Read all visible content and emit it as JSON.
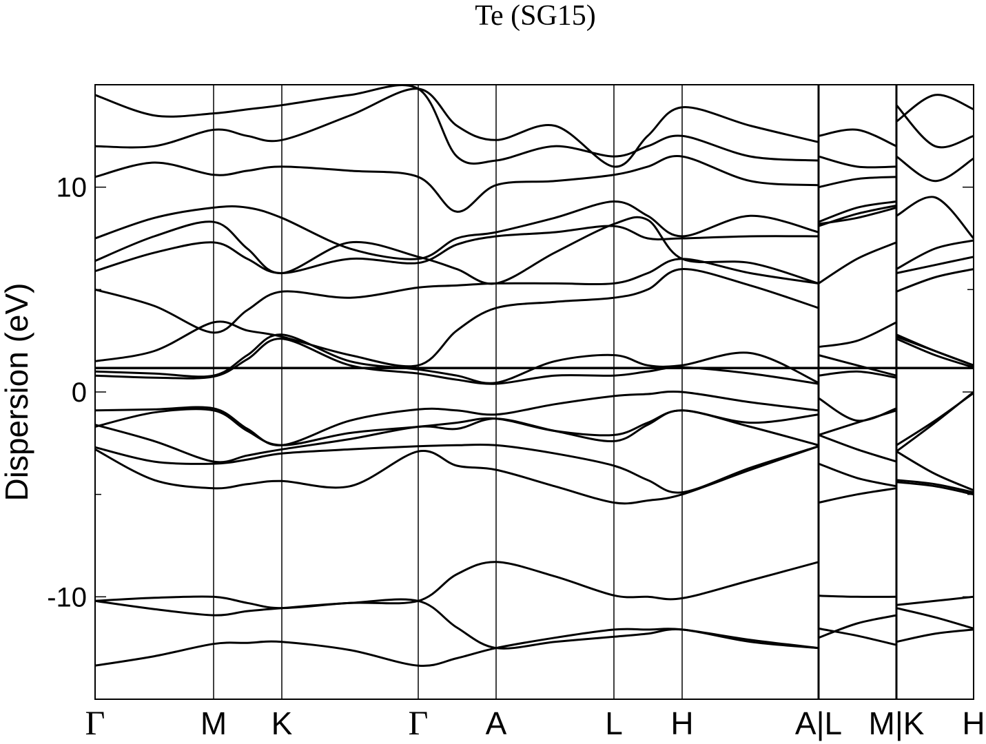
{
  "chart_data": {
    "type": "line",
    "title": "Te (SG15)",
    "y_label": "Dispersion (eV)",
    "x": [
      0,
      0.86,
      1.72,
      2.21,
      2.71,
      3.7,
      4.69,
      5.25,
      5.82,
      6.67,
      7.53,
      8.02,
      8.52,
      9.51,
      10.5,
      10.5,
      10.5,
      11.06,
      11.63,
      11.63,
      11.63,
      12.19,
      12.75
    ],
    "xlim": [
      0,
      12.75
    ],
    "xticks": [
      {
        "value": 0,
        "label": "Γ"
      },
      {
        "value": 1.72,
        "label": "M"
      },
      {
        "value": 2.71,
        "label": "K"
      },
      {
        "value": 4.69,
        "label": "Γ"
      },
      {
        "value": 5.82,
        "label": "A"
      },
      {
        "value": 7.53,
        "label": "L"
      },
      {
        "value": 8.52,
        "label": "H"
      },
      {
        "value": 10.5,
        "label": "A|L"
      },
      {
        "value": 11.63,
        "label": "M|K"
      },
      {
        "value": 12.75,
        "label": "H"
      }
    ],
    "ylim": [
      -15,
      15
    ],
    "yticks": [
      -10,
      0,
      10
    ],
    "yminorticks": [
      -5,
      5
    ],
    "hline": 1.17,
    "color": "#000000",
    "series": [
      {
        "values": [
          -13.36,
          -12.9,
          -12.3,
          -12.25,
          -12.2,
          -12.6,
          -13.36,
          -13.0,
          -12.5,
          -12.0,
          -11.6,
          -11.6,
          -11.6,
          -12.1,
          -12.5,
          null,
          -11.55,
          -11.9,
          -12.35,
          null,
          -12.2,
          -11.8,
          -11.6
        ]
      },
      {
        "values": [
          -10.2,
          -10.6,
          -10.9,
          -10.7,
          -10.55,
          -10.3,
          -10.2,
          -11.5,
          -12.5,
          -12.2,
          -11.95,
          -11.8,
          -11.6,
          -12.2,
          -12.5,
          null,
          -12.0,
          -11.3,
          -10.9,
          null,
          -10.55,
          -11.0,
          -11.55
        ]
      },
      {
        "values": [
          -10.2,
          -10.05,
          -10.0,
          -10.3,
          -10.55,
          -10.3,
          -10.2,
          -8.9,
          -8.3,
          -9.0,
          -9.93,
          -10.0,
          -10.07,
          -9.2,
          -8.3,
          null,
          -9.95,
          -10.0,
          -10.0,
          null,
          -10.4,
          -10.2,
          -10.0
        ]
      },
      {
        "values": [
          -2.8,
          -4.3,
          -4.7,
          -4.5,
          -4.35,
          -4.6,
          -2.9,
          -3.6,
          -3.8,
          -4.6,
          -5.4,
          -5.3,
          -5.0,
          -3.8,
          -2.65,
          null,
          -5.4,
          -5.0,
          -4.7,
          null,
          -4.4,
          -4.6,
          -5.0
        ]
      },
      {
        "values": [
          -2.7,
          -3.4,
          -3.5,
          -3.3,
          -3.0,
          -2.8,
          -2.65,
          -2.6,
          -2.6,
          -3.0,
          -3.6,
          -4.3,
          -4.9,
          -3.7,
          -2.65,
          null,
          -3.5,
          -4.2,
          -4.6,
          null,
          -4.3,
          -4.5,
          -4.9
        ]
      },
      {
        "values": [
          -1.6,
          -2.4,
          -3.4,
          -3.1,
          -2.8,
          -2.3,
          -1.7,
          -1.8,
          -1.3,
          -1.9,
          -2.4,
          -1.6,
          -0.9,
          -1.7,
          -2.6,
          null,
          -2.1,
          -2.8,
          -3.4,
          null,
          -2.9,
          -4.0,
          -4.8
        ]
      },
      {
        "values": [
          -1.7,
          -1.0,
          -0.9,
          -1.9,
          -2.6,
          -2.0,
          -1.7,
          -1.5,
          -1.3,
          -1.9,
          -2.1,
          -1.5,
          -0.9,
          -1.5,
          -1.1,
          null,
          -2.1,
          -1.5,
          -0.9,
          null,
          -2.6,
          -1.4,
          -0.05
        ]
      },
      {
        "values": [
          -0.9,
          -0.85,
          -0.8,
          -1.8,
          -2.6,
          -1.4,
          -0.85,
          -0.9,
          -1.1,
          -0.6,
          -0.2,
          -0.1,
          0.0,
          -0.5,
          -0.9,
          null,
          -0.3,
          -1.4,
          -0.8,
          null,
          -2.9,
          -1.5,
          0.0
        ]
      },
      {
        "values": [
          0.8,
          0.7,
          0.75,
          1.6,
          2.6,
          1.3,
          0.9,
          0.6,
          0.4,
          0.8,
          0.8,
          1.0,
          1.2,
          0.9,
          0.4,
          null,
          0.8,
          1.0,
          0.7,
          null,
          2.6,
          1.8,
          1.2
        ]
      },
      {
        "values": [
          1.0,
          0.9,
          0.8,
          1.8,
          2.8,
          1.5,
          1.1,
          0.8,
          0.45,
          1.5,
          1.8,
          1.3,
          1.3,
          1.9,
          0.45,
          null,
          1.8,
          1.3,
          0.8,
          null,
          2.8,
          2.0,
          1.3
        ]
      },
      {
        "values": [
          1.5,
          2.0,
          3.4,
          3.0,
          2.7,
          1.8,
          1.3,
          3.0,
          4.1,
          4.4,
          4.6,
          5.0,
          6.0,
          5.2,
          4.1,
          null,
          2.2,
          2.5,
          3.4,
          null,
          2.7,
          2.0,
          1.3
        ]
      },
      {
        "values": [
          5.0,
          4.2,
          2.9,
          4.0,
          4.9,
          4.6,
          5.1,
          5.2,
          5.3,
          5.3,
          5.3,
          5.8,
          6.5,
          5.8,
          5.3,
          null,
          5.3,
          6.5,
          7.3,
          null,
          4.9,
          5.6,
          6.0
        ]
      },
      {
        "values": [
          5.9,
          6.8,
          7.3,
          6.5,
          5.8,
          6.5,
          6.3,
          7.2,
          7.6,
          7.8,
          8.1,
          7.5,
          7.5,
          7.6,
          7.6,
          null,
          8.2,
          8.5,
          9.0,
          null,
          5.8,
          6.2,
          6.6
        ]
      },
      {
        "values": [
          6.4,
          7.6,
          8.3,
          7.0,
          5.8,
          7.3,
          6.6,
          6.0,
          5.3,
          6.8,
          8.2,
          8.4,
          6.5,
          6.3,
          5.3,
          null,
          8.1,
          8.7,
          9.1,
          null,
          6.0,
          7.0,
          7.4
        ]
      },
      {
        "values": [
          7.5,
          8.5,
          9.0,
          9.0,
          8.5,
          7.0,
          6.5,
          7.5,
          7.8,
          8.5,
          9.3,
          8.6,
          7.6,
          8.6,
          7.8,
          null,
          8.3,
          9.0,
          9.3,
          null,
          8.6,
          9.5,
          7.5
        ]
      },
      {
        "values": [
          10.5,
          11.2,
          10.6,
          10.8,
          11.0,
          10.8,
          10.5,
          8.8,
          10.1,
          10.3,
          10.6,
          11.0,
          11.5,
          10.3,
          10.1,
          null,
          10.0,
          10.4,
          10.5,
          null,
          11.5,
          10.3,
          11.4
        ]
      },
      {
        "values": [
          12.0,
          12.0,
          12.8,
          12.5,
          12.3,
          13.5,
          14.8,
          13.0,
          12.3,
          13.0,
          11.0,
          12.5,
          13.9,
          13.0,
          12.2,
          null,
          12.5,
          12.8,
          12.0,
          null,
          14.0,
          12.0,
          12.5
        ]
      },
      {
        "values": [
          14.5,
          13.5,
          13.6,
          13.8,
          14.0,
          14.5,
          14.8,
          11.5,
          11.3,
          12.0,
          11.5,
          12.0,
          12.5,
          11.5,
          11.3,
          null,
          11.5,
          11.0,
          11.0,
          null,
          13.2,
          14.5,
          13.8
        ]
      }
    ]
  }
}
